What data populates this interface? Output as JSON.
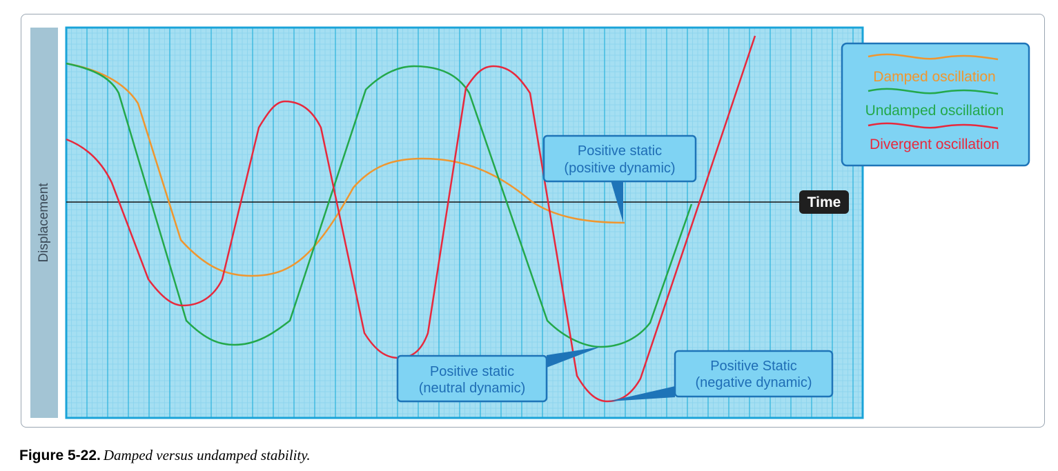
{
  "diagram": {
    "y_axis_label": "Displacement",
    "x_axis_label": "Time",
    "legend": [
      {
        "label": "Damped oscillation",
        "color": "#f0962e"
      },
      {
        "label": "Undamped oscillation",
        "color": "#23a84a"
      },
      {
        "label": "Divergent oscillation",
        "color": "#e8283c"
      }
    ],
    "callouts": {
      "damped": [
        "Positive static",
        "(positive dynamic)"
      ],
      "undamped": [
        "Positive static",
        "(neutral dynamic)"
      ],
      "divergent": [
        "Positive Static",
        "(negative dynamic)"
      ]
    },
    "colors": {
      "grid_background": "#a5dff2",
      "grid_line": "#2ab2dd",
      "callout_fill": "#7fd3f3",
      "callout_border": "#1e74b8",
      "callout_text": "#1e6db5",
      "axis_label_bg": "#a3c4d4",
      "time_badge": "#1f1f1f"
    }
  },
  "caption": {
    "figure_number": "Figure 5-22.",
    "text": "Damped versus undamped stability."
  }
}
